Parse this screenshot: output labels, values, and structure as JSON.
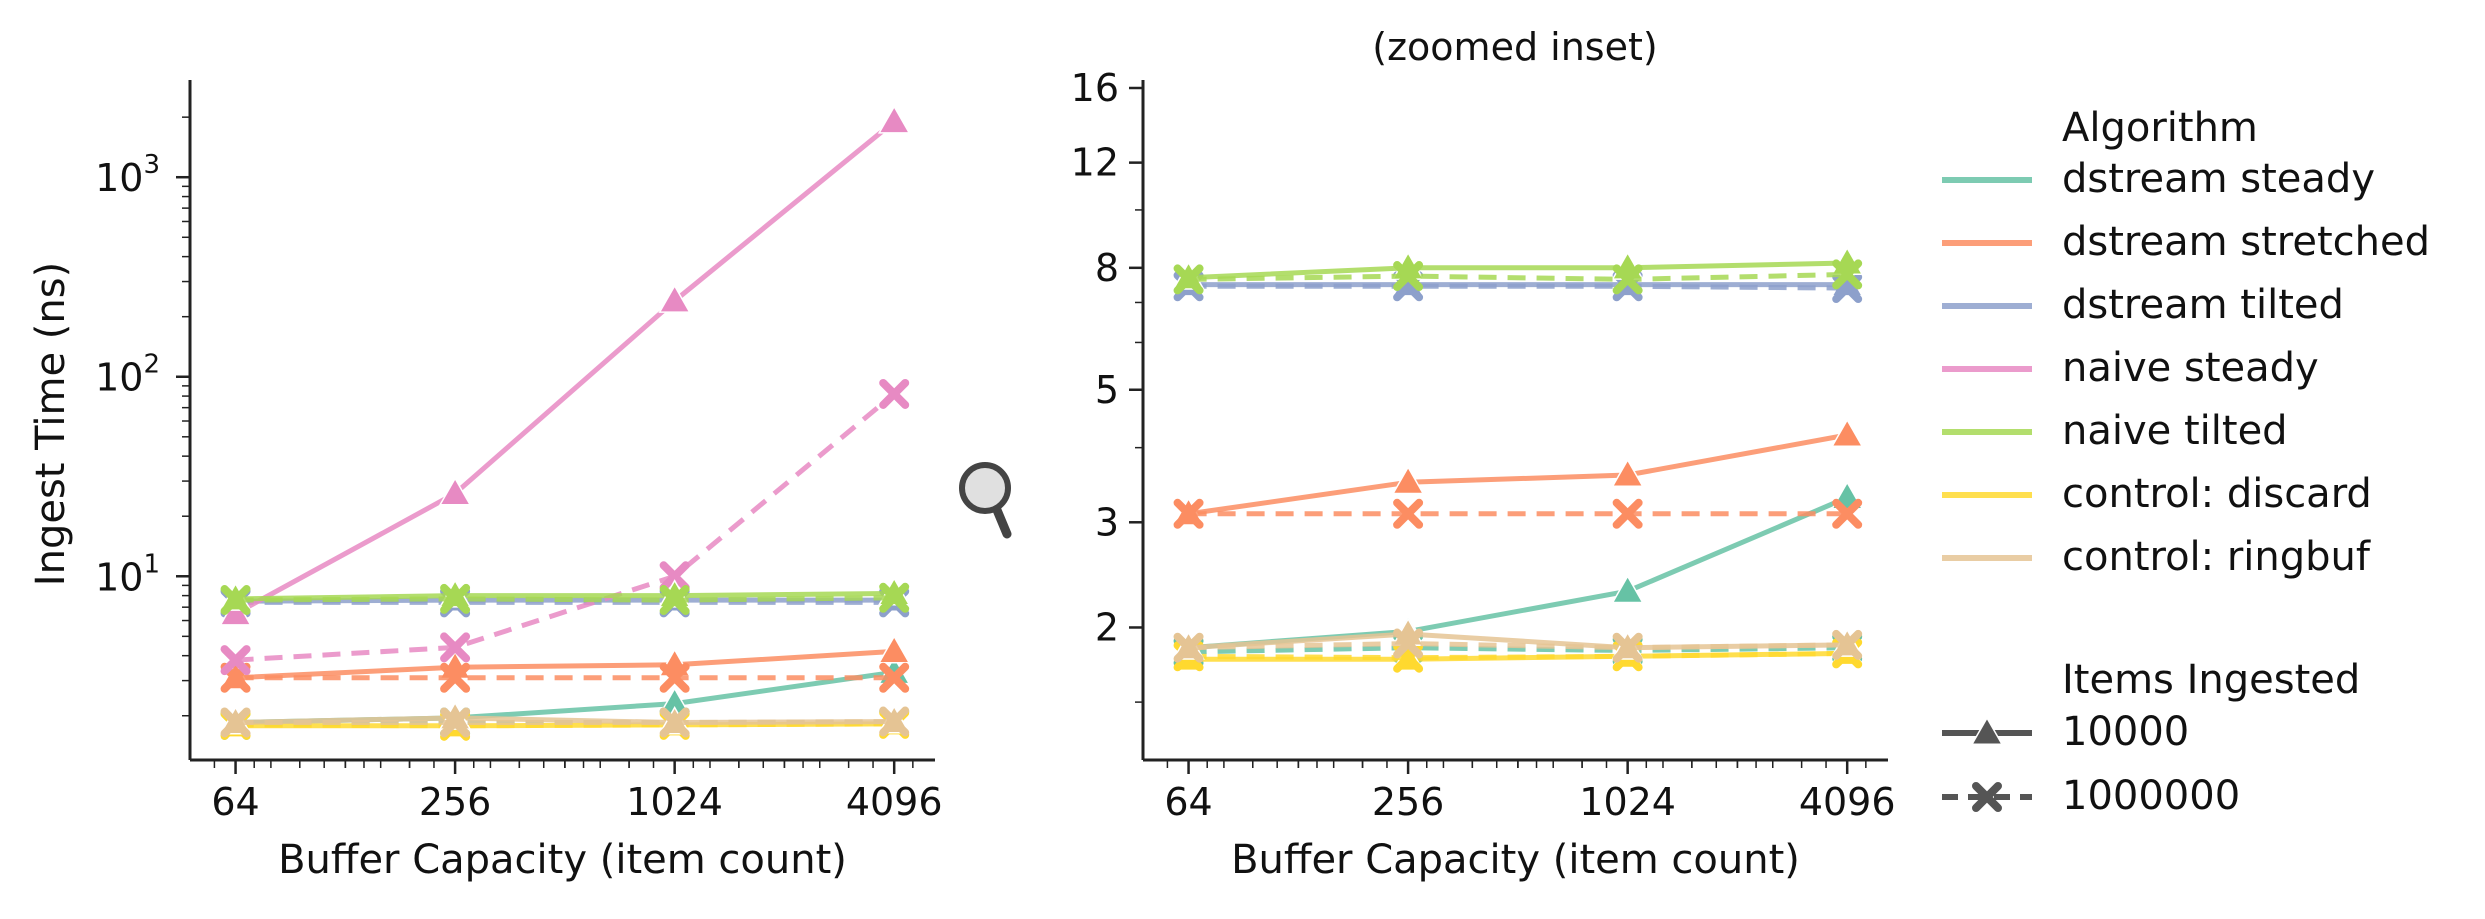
{
  "colors": {
    "dstream steady": "#66c2a5",
    "dstream stretched": "#fc8d62",
    "dstream tilted": "#8da0cb",
    "naive steady": "#e78ac3",
    "naive tilted": "#a6d854",
    "control: discard": "#ffd92f",
    "control: ringbuf": "#e5c494",
    "legend_marker": "#555555"
  },
  "icons": {
    "zoom": "magnifier-icon"
  },
  "chart_data": [
    {
      "type": "line",
      "title": "",
      "xlabel": "Buffer Capacity (item count)",
      "ylabel": "Ingest Time (ns)",
      "xscale": "log2",
      "yscale": "log10",
      "x": [
        64,
        256,
        1024,
        4096
      ],
      "xticks": [
        64,
        256,
        1024,
        4096
      ],
      "xtick_labels": [
        "64",
        "256",
        "1024",
        "4096"
      ],
      "ylim": [
        1.2,
        2800
      ],
      "yticks": [
        10,
        100,
        1000
      ],
      "ytick_labels": [
        "10",
        "10",
        "10"
      ],
      "ytick_exponents": [
        "1",
        "2",
        "3"
      ],
      "grid": false,
      "series": [
        {
          "name": "dstream steady",
          "items": "10000",
          "values": [
            1.85,
            1.95,
            2.3,
            3.3
          ]
        },
        {
          "name": "dstream steady",
          "items": "1000000",
          "values": [
            1.8,
            1.85,
            1.85,
            1.85
          ]
        },
        {
          "name": "dstream stretched",
          "items": "10000",
          "values": [
            3.1,
            3.5,
            3.6,
            4.2
          ]
        },
        {
          "name": "dstream stretched",
          "items": "1000000",
          "values": [
            3.1,
            3.1,
            3.1,
            3.1
          ]
        },
        {
          "name": "dstream tilted",
          "items": "10000",
          "values": [
            7.5,
            7.6,
            7.6,
            7.6
          ]
        },
        {
          "name": "dstream tilted",
          "items": "1000000",
          "values": [
            7.4,
            7.4,
            7.4,
            7.4
          ]
        },
        {
          "name": "naive steady",
          "items": "10000",
          "values": [
            6.5,
            26,
            240,
            1900
          ]
        },
        {
          "name": "naive steady",
          "items": "1000000",
          "values": [
            3.8,
            4.4,
            10,
            82
          ]
        },
        {
          "name": "naive tilted",
          "items": "10000",
          "values": [
            7.7,
            8.0,
            8.0,
            8.2
          ]
        },
        {
          "name": "naive tilted",
          "items": "1000000",
          "values": [
            7.6,
            7.7,
            7.6,
            7.8
          ]
        },
        {
          "name": "control: discard",
          "items": "10000",
          "values": [
            1.78,
            1.78,
            1.8,
            1.82
          ]
        },
        {
          "name": "control: discard",
          "items": "1000000",
          "values": [
            1.8,
            1.78,
            1.8,
            1.82
          ]
        },
        {
          "name": "control: ringbuf",
          "items": "10000",
          "values": [
            1.85,
            1.95,
            1.85,
            1.87
          ]
        },
        {
          "name": "control: ringbuf",
          "items": "1000000",
          "values": [
            1.85,
            1.85,
            1.85,
            1.87
          ]
        }
      ]
    },
    {
      "type": "line",
      "title": "(zoomed inset)",
      "xlabel": "Buffer Capacity (item count)",
      "ylabel": "",
      "xscale": "log2",
      "yscale": "log",
      "x": [
        64,
        256,
        1024,
        4096
      ],
      "xticks": [
        64,
        256,
        1024,
        4096
      ],
      "xtick_labels": [
        "64",
        "256",
        "1024",
        "4096"
      ],
      "ylim": [
        1.2,
        16
      ],
      "yticks": [
        2,
        3,
        5,
        8,
        12,
        16
      ],
      "ytick_labels": [
        "2",
        "3",
        "5",
        "8",
        "12",
        "16"
      ],
      "grid": false,
      "series": [
        {
          "name": "dstream steady",
          "items": "10000",
          "values": [
            1.85,
            1.97,
            2.3,
            3.3
          ]
        },
        {
          "name": "dstream steady",
          "items": "1000000",
          "values": [
            1.82,
            1.85,
            1.83,
            1.85
          ]
        },
        {
          "name": "dstream stretched",
          "items": "10000",
          "values": [
            3.1,
            3.5,
            3.6,
            4.2
          ]
        },
        {
          "name": "dstream stretched",
          "items": "1000000",
          "values": [
            3.1,
            3.1,
            3.1,
            3.1
          ]
        },
        {
          "name": "dstream tilted",
          "items": "10000",
          "values": [
            7.5,
            7.5,
            7.5,
            7.5
          ]
        },
        {
          "name": "dstream tilted",
          "items": "1000000",
          "values": [
            7.45,
            7.45,
            7.45,
            7.4
          ]
        },
        {
          "name": "naive tilted",
          "items": "10000",
          "values": [
            7.7,
            8.0,
            8.0,
            8.15
          ]
        },
        {
          "name": "naive tilted",
          "items": "1000000",
          "values": [
            7.65,
            7.75,
            7.65,
            7.8
          ]
        },
        {
          "name": "control: discard",
          "items": "10000",
          "values": [
            1.77,
            1.77,
            1.79,
            1.81
          ]
        },
        {
          "name": "control: discard",
          "items": "1000000",
          "values": [
            1.79,
            1.78,
            1.79,
            1.81
          ]
        },
        {
          "name": "control: ringbuf",
          "items": "10000",
          "values": [
            1.85,
            1.95,
            1.85,
            1.87
          ]
        },
        {
          "name": "control: ringbuf",
          "items": "1000000",
          "values": [
            1.85,
            1.88,
            1.85,
            1.87
          ]
        }
      ]
    }
  ],
  "legend": {
    "title": "Algorithm",
    "entries": [
      "dstream steady",
      "dstream stretched",
      "dstream tilted",
      "naive steady",
      "naive tilted",
      "control: discard",
      "control: ringbuf"
    ],
    "marker_title": "Items Ingested",
    "marker_entries": [
      {
        "label": "10000",
        "marker": "triangle",
        "dash": "solid"
      },
      {
        "label": "1000000",
        "marker": "x",
        "dash": "dashed"
      }
    ],
    "placement": "right"
  }
}
